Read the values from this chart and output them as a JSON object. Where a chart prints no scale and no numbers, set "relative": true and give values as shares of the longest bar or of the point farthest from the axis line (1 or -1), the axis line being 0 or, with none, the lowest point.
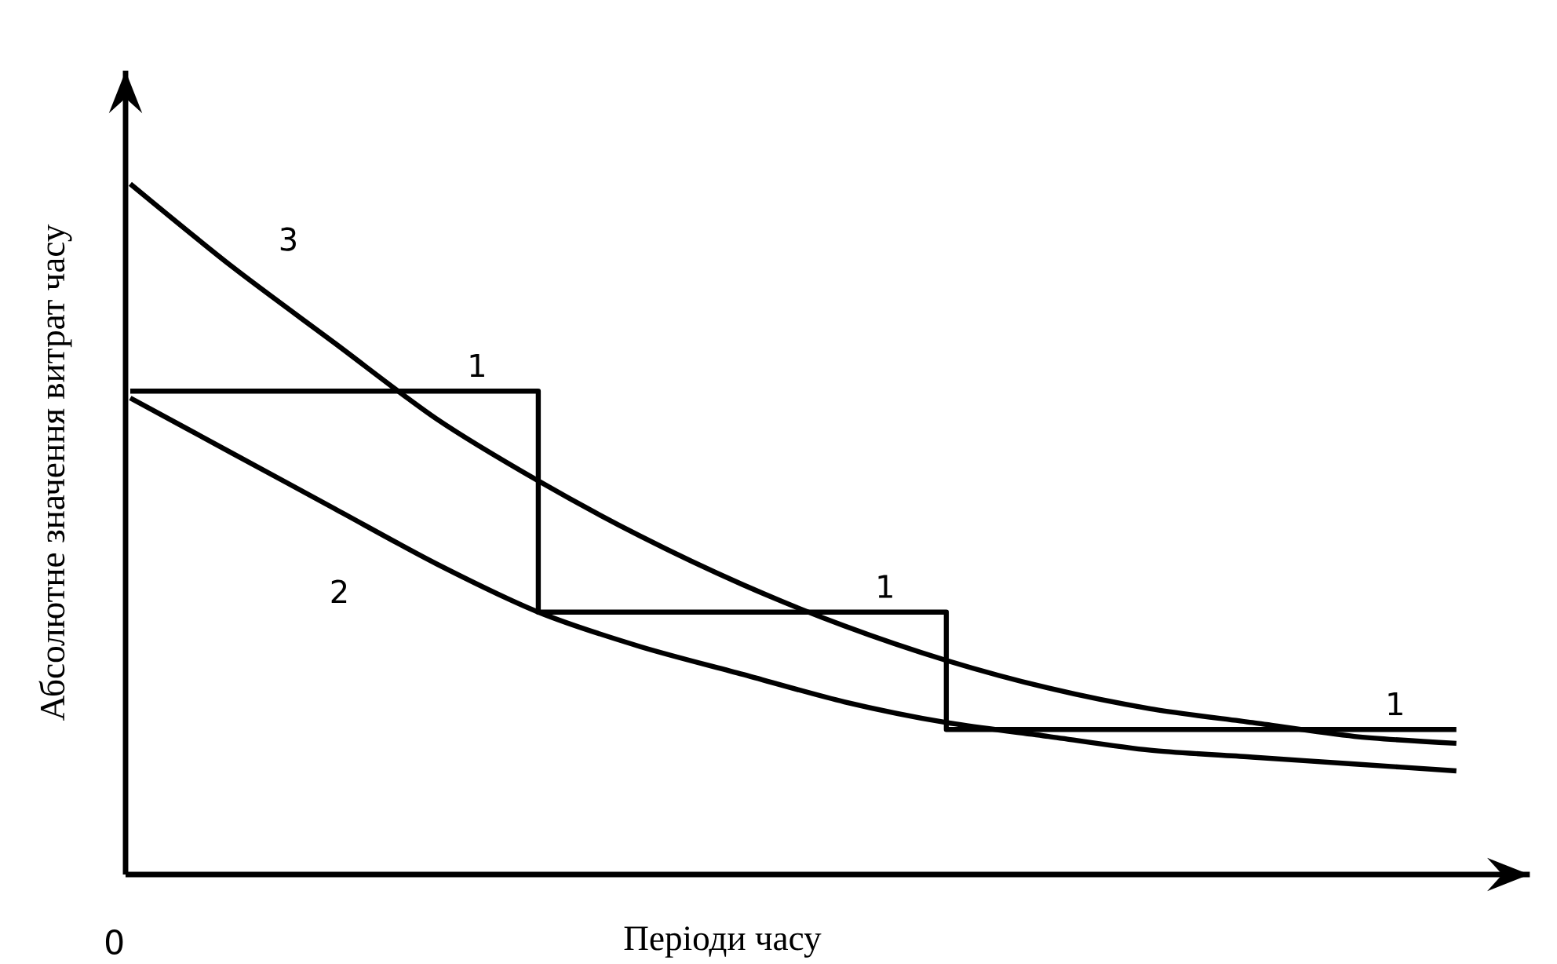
{
  "chart_data": {
    "type": "line",
    "relative": true,
    "xlabel": "Періоди часу",
    "ylabel": "Абсолютне значення витрат часу",
    "categories": [
      null,
      null,
      null,
      null,
      null,
      null,
      null,
      null,
      null,
      null,
      null,
      null,
      null,
      null
    ],
    "series": [
      {
        "name": "1",
        "type": "step",
        "color": "#000000",
        "values": [
          0.7,
          0.7,
          0.7,
          0.7,
          0.38,
          0.38,
          0.38,
          0.38,
          0.21,
          0.21,
          0.21,
          0.21,
          0.21,
          0.21
        ]
      },
      {
        "name": "2",
        "color": "#000000",
        "values": [
          0.69,
          0.61,
          0.53,
          0.45,
          0.38,
          0.33,
          0.29,
          0.25,
          0.22,
          0.2,
          0.18,
          0.17,
          0.16,
          0.15
        ]
      },
      {
        "name": "3",
        "color": "#000000",
        "values": [
          1.0,
          0.88,
          0.77,
          0.66,
          0.57,
          0.49,
          0.42,
          0.36,
          0.31,
          0.27,
          0.24,
          0.22,
          0.2,
          0.19
        ]
      }
    ],
    "annotations": [
      "0"
    ]
  }
}
